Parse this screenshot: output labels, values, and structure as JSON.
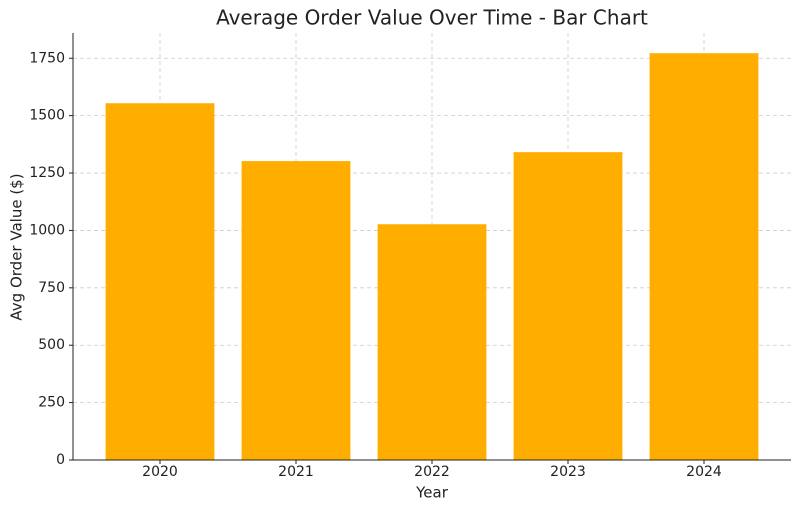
{
  "chart_data": {
    "type": "bar",
    "title": "Average Order Value Over Time - Bar Chart",
    "x_label": "Year",
    "y_label": "Avg Order Value ($)",
    "categories": [
      "2020",
      "2021",
      "2022",
      "2023",
      "2024"
    ],
    "values": [
      1554,
      1302,
      1027,
      1341,
      1772
    ],
    "color": "#ffae00",
    "ylim": [
      0,
      1860
    ],
    "yticks": [
      0,
      250,
      500,
      750,
      1000,
      1250,
      1500,
      1750
    ],
    "grid": true
  }
}
